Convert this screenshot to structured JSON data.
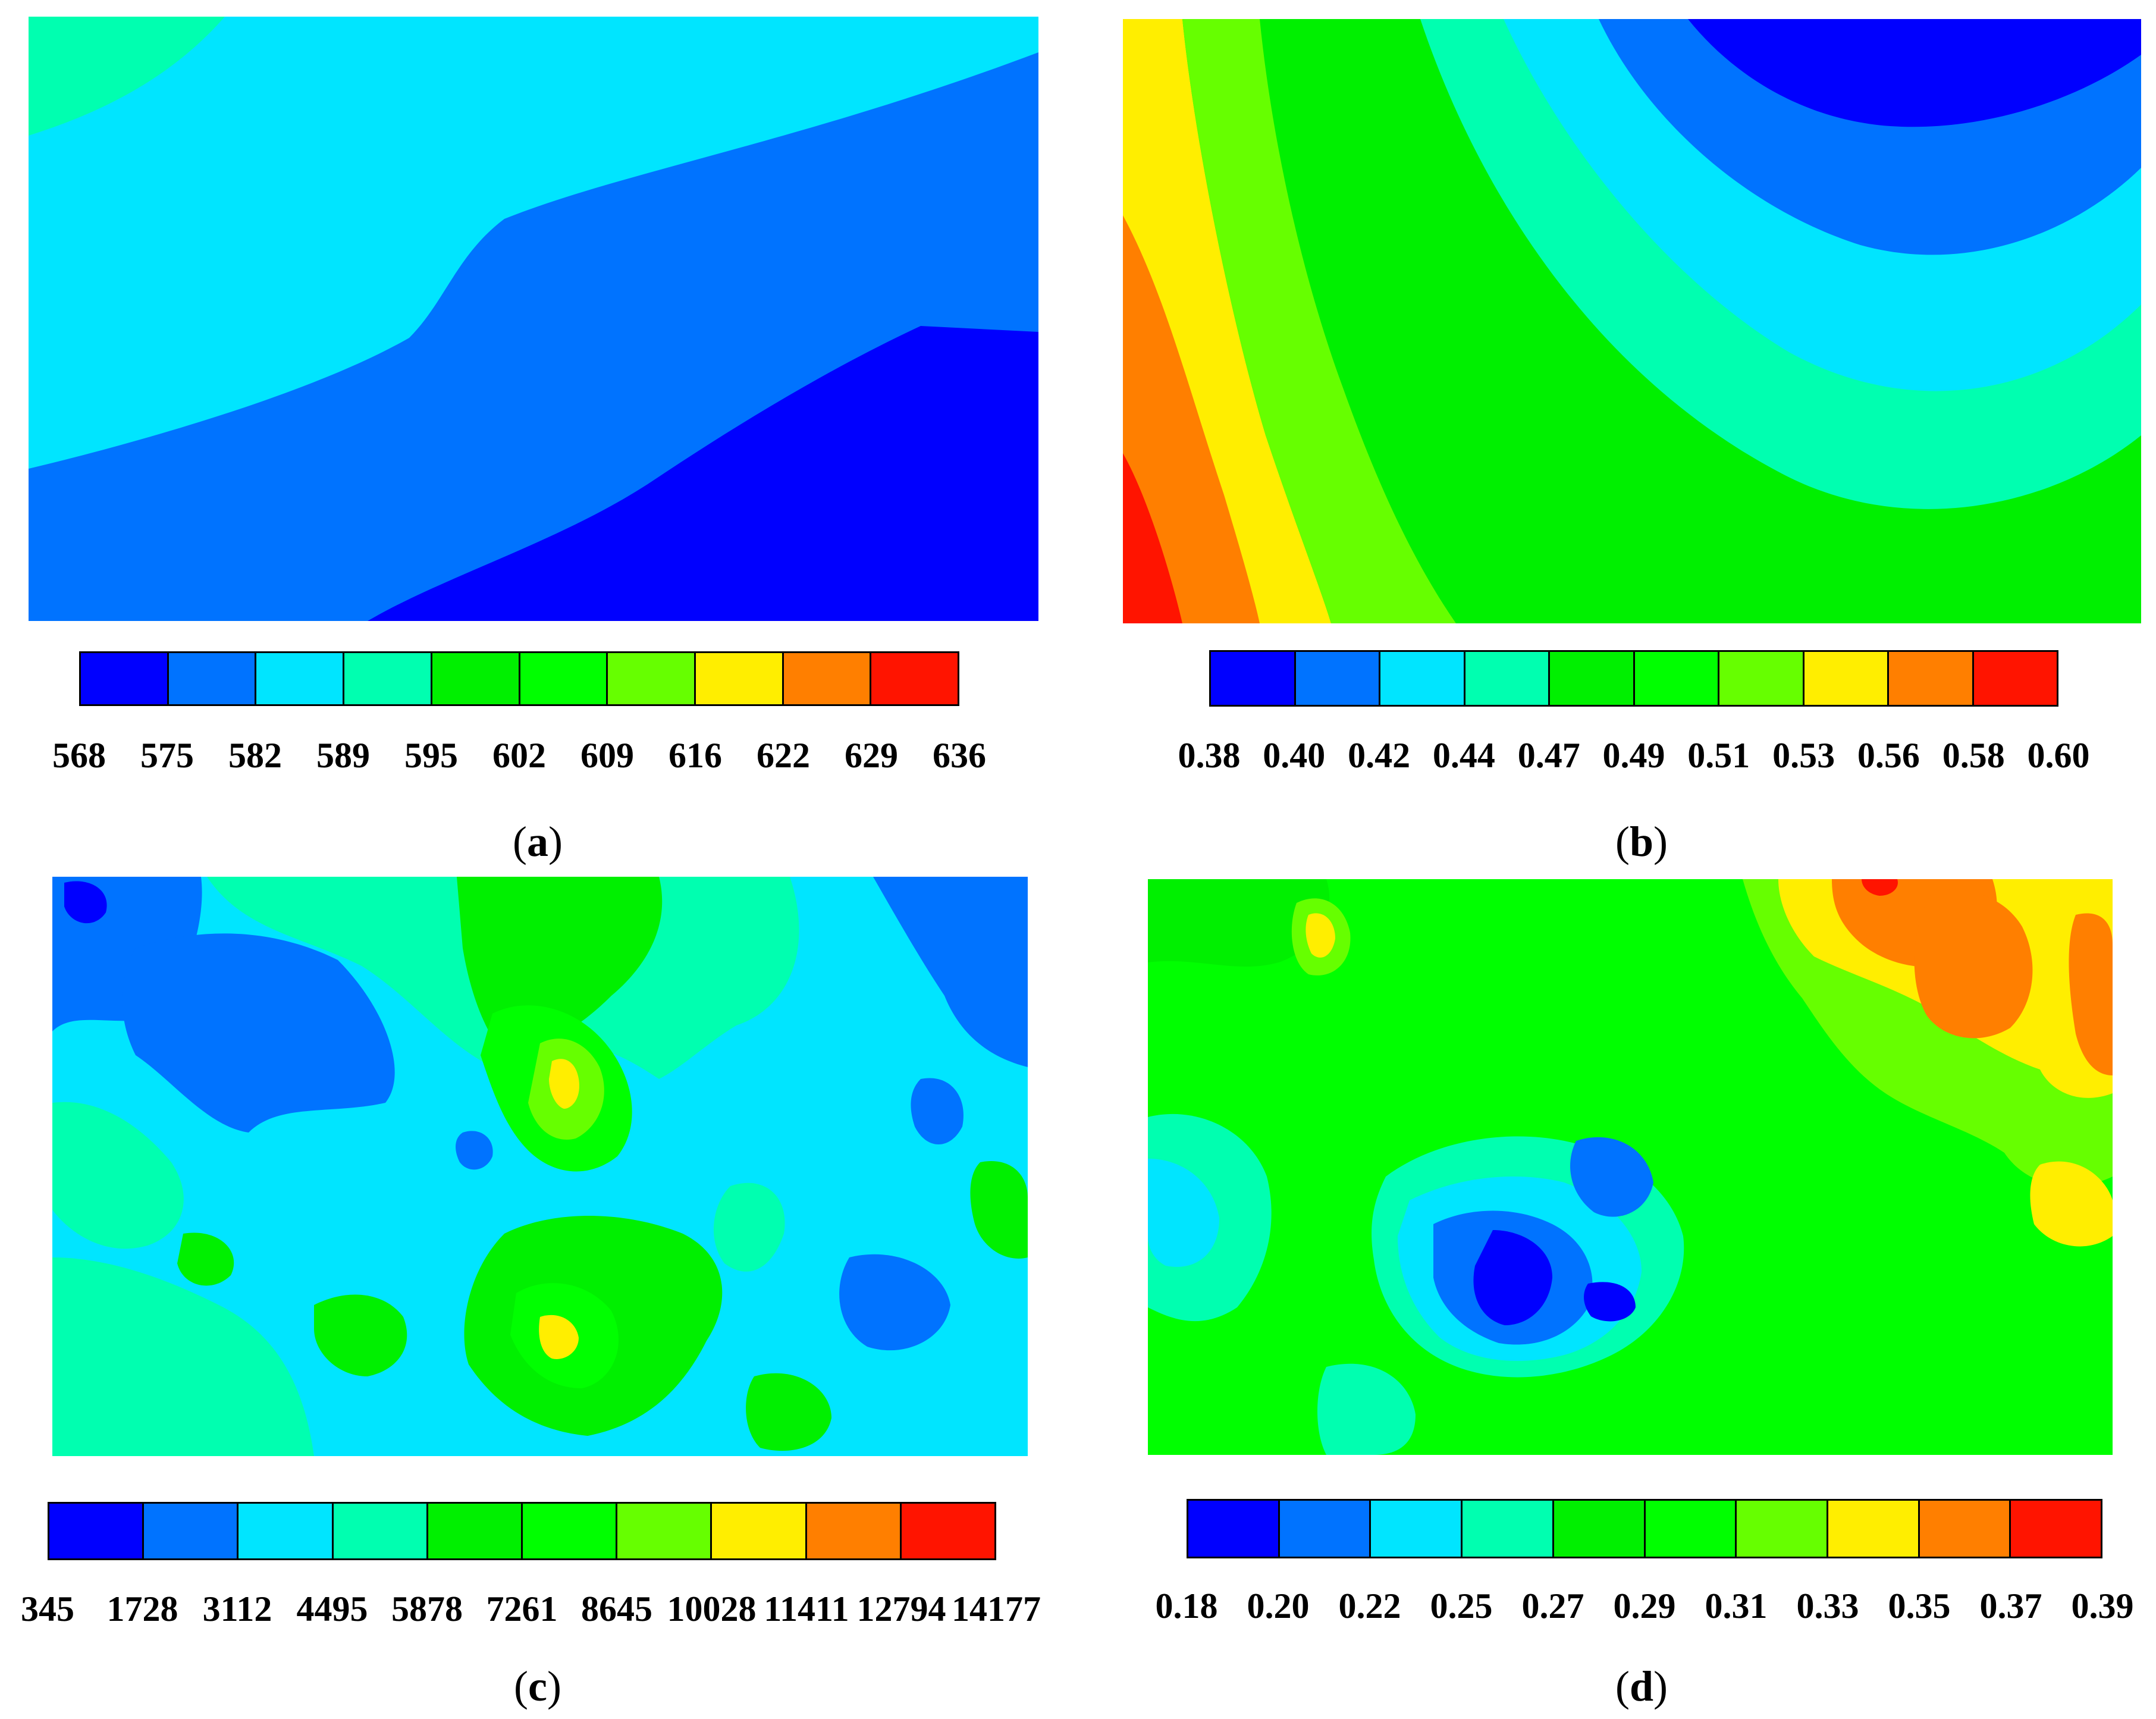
{
  "colors": [
    "#0000ff",
    "#0073ff",
    "#00e5ff",
    "#00ffb0",
    "#00f000",
    "#00ff00",
    "#66ff00",
    "#ffee00",
    "#ff7f00",
    "#ff1400"
  ],
  "chart_data": [
    {
      "type": "heatmap",
      "panel": "a",
      "caption_letter": "a",
      "colorbar_ticks": [
        "568",
        "575",
        "582",
        "589",
        "595",
        "602",
        "609",
        "616",
        "622",
        "629",
        "636"
      ],
      "range": [
        568,
        636
      ],
      "visible_levels": [
        0,
        1,
        2,
        3
      ]
    },
    {
      "type": "heatmap",
      "panel": "b",
      "caption_letter": "b",
      "colorbar_ticks": [
        "0.38",
        "0.40",
        "0.42",
        "0.44",
        "0.47",
        "0.49",
        "0.51",
        "0.53",
        "0.56",
        "0.58",
        "0.60"
      ],
      "range": [
        0.38,
        0.6
      ],
      "visible_levels": [
        0,
        1,
        2,
        3,
        4,
        5,
        6,
        7,
        8,
        9
      ]
    },
    {
      "type": "heatmap",
      "panel": "c",
      "caption_letter": "c",
      "colorbar_ticks": [
        "345",
        "1728",
        "3112",
        "4495",
        "5878",
        "7261",
        "8645",
        "10028",
        "11411",
        "12794",
        "14177"
      ],
      "range": [
        345,
        14177
      ],
      "visible_levels": [
        0,
        1,
        2,
        3,
        4,
        5,
        6,
        7
      ]
    },
    {
      "type": "heatmap",
      "panel": "d",
      "caption_letter": "d",
      "colorbar_ticks": [
        "0.18",
        "0.20",
        "0.22",
        "0.25",
        "0.27",
        "0.29",
        "0.31",
        "0.33",
        "0.35",
        "0.37",
        "0.39"
      ],
      "range": [
        0.18,
        0.39
      ],
      "visible_levels": [
        0,
        1,
        2,
        3,
        4,
        5,
        6,
        7,
        8,
        9
      ]
    }
  ]
}
